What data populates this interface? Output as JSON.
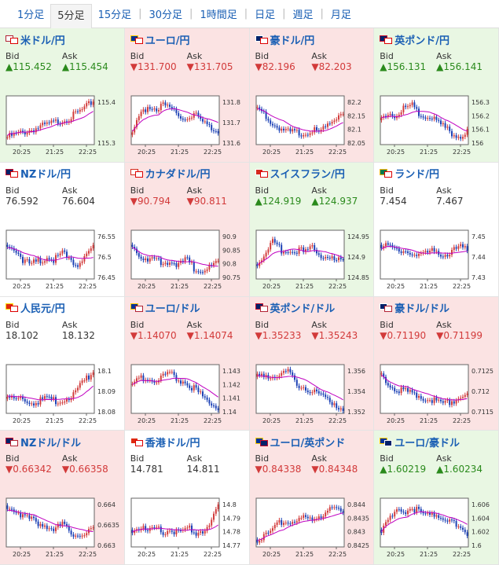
{
  "tabs": [
    "1分足",
    "5分足",
    "15分足",
    "30分足",
    "1時間足",
    "日足",
    "週足",
    "月足"
  ],
  "active_tab": 1,
  "labels": {
    "bid": "Bid",
    "ask": "Ask"
  },
  "colors": {
    "up_bg": "#e9f7e3",
    "down_bg": "#fbe3e3",
    "up": "#2a8a1c",
    "down": "#d23a3a",
    "candle_up": "#d23a3a",
    "candle_down": "#1a3fb4",
    "ma": "#c000c0"
  },
  "x_ticks": [
    "20:25",
    "21:25",
    "22:25"
  ],
  "pairs": [
    {
      "name": "米ドル/円",
      "trend": "up",
      "bid": "▲115.452",
      "ask": "▲115.454",
      "flag": "us-jp-flag-icon",
      "y_ticks": [
        "115.4",
        "115.3"
      ],
      "shape": [
        0.15,
        0.2,
        0.25,
        0.3,
        0.35,
        0.4,
        0.45,
        0.5,
        0.55,
        0.65,
        0.75,
        0.9
      ]
    },
    {
      "name": "ユーロ/円",
      "trend": "down",
      "bid": "▼131.700",
      "ask": "▼131.705",
      "flag": "eu-jp-flag-icon",
      "y_ticks": [
        "131.8",
        "131.7",
        "131.6"
      ],
      "shape": [
        0.2,
        0.6,
        0.8,
        0.75,
        0.8,
        0.7,
        0.6,
        0.55,
        0.65,
        0.45,
        0.35,
        0.3
      ]
    },
    {
      "name": "豪ドル/円",
      "trend": "down",
      "bid": "▼82.196",
      "ask": "▼82.203",
      "flag": "au-jp-flag-icon",
      "y_ticks": [
        "82.2",
        "82.15",
        "82.1",
        "82.05"
      ],
      "shape": [
        0.75,
        0.6,
        0.45,
        0.3,
        0.25,
        0.3,
        0.2,
        0.3,
        0.25,
        0.35,
        0.55,
        0.7
      ]
    },
    {
      "name": "英ポンド/円",
      "trend": "up",
      "bid": "▲156.131",
      "ask": "▲156.141",
      "flag": "gb-jp-flag-icon",
      "y_ticks": [
        "156.3",
        "156.2",
        "156.1",
        "156"
      ],
      "shape": [
        0.5,
        0.65,
        0.6,
        0.75,
        0.8,
        0.6,
        0.55,
        0.5,
        0.35,
        0.25,
        0.15,
        0.3
      ]
    },
    {
      "name": "NZドル/円",
      "trend": "flat",
      "bid": "76.592",
      "ask": "76.604",
      "flag": "nz-jp-flag-icon",
      "y_ticks": [
        "76.55",
        "76.5",
        "76.45"
      ],
      "shape": [
        0.7,
        0.6,
        0.4,
        0.3,
        0.35,
        0.45,
        0.4,
        0.55,
        0.35,
        0.3,
        0.5,
        0.65
      ]
    },
    {
      "name": "カナダドル/円",
      "trend": "down",
      "bid": "▼90.794",
      "ask": "▼90.811",
      "flag": "ca-jp-flag-icon",
      "y_ticks": [
        "90.9",
        "90.85",
        "90.8",
        "90.75"
      ],
      "shape": [
        0.7,
        0.5,
        0.35,
        0.4,
        0.35,
        0.35,
        0.3,
        0.4,
        0.2,
        0.15,
        0.25,
        0.35
      ]
    },
    {
      "name": "スイスフラン/円",
      "trend": "up",
      "bid": "▲124.919",
      "ask": "▲124.937",
      "flag": "ch-jp-flag-icon",
      "y_ticks": [
        "124.95",
        "124.9",
        "124.85"
      ],
      "shape": [
        0.3,
        0.5,
        0.75,
        0.6,
        0.55,
        0.6,
        0.55,
        0.65,
        0.5,
        0.45,
        0.35,
        0.4
      ]
    },
    {
      "name": "ランド/円",
      "trend": "flat",
      "bid": "7.454",
      "ask": "7.467",
      "flag": "za-jp-flag-icon",
      "y_ticks": [
        "7.45",
        "7.44",
        "7.43"
      ],
      "shape": [
        0.7,
        0.65,
        0.55,
        0.6,
        0.55,
        0.45,
        0.55,
        0.6,
        0.5,
        0.55,
        0.65,
        0.6
      ]
    },
    {
      "name": "人民元/円",
      "trend": "flat",
      "bid": "18.102",
      "ask": "18.132",
      "flag": "cn-jp-flag-icon",
      "y_ticks": [
        "18.1",
        "18.09",
        "18.08"
      ],
      "shape": [
        0.3,
        0.25,
        0.3,
        0.2,
        0.25,
        0.3,
        0.25,
        0.3,
        0.35,
        0.5,
        0.7,
        0.85
      ]
    },
    {
      "name": "ユーロ/ドル",
      "trend": "down",
      "bid": "▼1.14070",
      "ask": "▼1.14074",
      "flag": "eu-us-flag-icon",
      "y_ticks": [
        "1.143",
        "1.142",
        "1.141",
        "1.14"
      ],
      "shape": [
        0.6,
        0.7,
        0.75,
        0.65,
        0.75,
        0.8,
        0.7,
        0.6,
        0.5,
        0.35,
        0.2,
        0.1
      ]
    },
    {
      "name": "英ポンド/ドル",
      "trend": "down",
      "bid": "▼1.35233",
      "ask": "▼1.35243",
      "flag": "gb-us-flag-icon",
      "y_ticks": [
        "1.356",
        "1.354",
        "1.352"
      ],
      "shape": [
        0.75,
        0.8,
        0.75,
        0.8,
        0.85,
        0.6,
        0.55,
        0.45,
        0.4,
        0.3,
        0.2,
        0.1
      ]
    },
    {
      "name": "豪ドル/ドル",
      "trend": "down",
      "bid": "▼0.71190",
      "ask": "▼0.71199",
      "flag": "au-us-flag-icon",
      "y_ticks": [
        "0.7125",
        "0.712",
        "0.7115"
      ],
      "shape": [
        0.8,
        0.6,
        0.5,
        0.45,
        0.4,
        0.35,
        0.3,
        0.25,
        0.2,
        0.25,
        0.35,
        0.4
      ]
    },
    {
      "name": "NZドル/ドル",
      "trend": "down",
      "bid": "▼0.66342",
      "ask": "▼0.66358",
      "flag": "nz-us-flag-icon",
      "y_ticks": [
        "0.664",
        "0.6635",
        "0.663"
      ],
      "shape": [
        0.85,
        0.75,
        0.65,
        0.55,
        0.5,
        0.45,
        0.35,
        0.45,
        0.3,
        0.25,
        0.3,
        0.35
      ]
    },
    {
      "name": "香港ドル/円",
      "trend": "flat",
      "bid": "14.781",
      "ask": "14.811",
      "flag": "hk-jp-flag-icon",
      "y_ticks": [
        "14.8",
        "14.79",
        "14.78",
        "14.77"
      ],
      "shape": [
        0.35,
        0.4,
        0.3,
        0.4,
        0.3,
        0.35,
        0.3,
        0.4,
        0.3,
        0.35,
        0.45,
        0.8
      ]
    },
    {
      "name": "ユーロ/英ポンド",
      "trend": "down",
      "bid": "▼0.84338",
      "ask": "▼0.84348",
      "flag": "eu-gb-flag-icon",
      "y_ticks": [
        "0.844",
        "0.8435",
        "0.843",
        "0.8425"
      ],
      "shape": [
        0.15,
        0.2,
        0.35,
        0.5,
        0.55,
        0.5,
        0.6,
        0.55,
        0.65,
        0.75,
        0.8,
        0.7
      ]
    },
    {
      "name": "ユーロ/豪ドル",
      "trend": "up",
      "bid": "▲1.60219",
      "ask": "▲1.60234",
      "flag": "eu-au-flag-icon",
      "y_ticks": [
        "1.606",
        "1.604",
        "1.602",
        "1.6"
      ],
      "shape": [
        0.35,
        0.55,
        0.7,
        0.75,
        0.8,
        0.7,
        0.65,
        0.7,
        0.6,
        0.5,
        0.35,
        0.3
      ]
    }
  ]
}
